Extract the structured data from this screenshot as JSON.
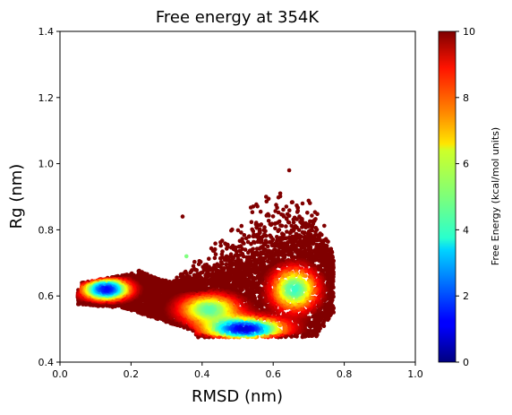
{
  "chart_data": {
    "type": "scatter",
    "title": "Free energy at 354K",
    "xlabel": "RMSD (nm)",
    "ylabel": "Rg (nm)",
    "xlim": [
      0.0,
      1.0
    ],
    "ylim": [
      0.4,
      1.4
    ],
    "xticks": [
      "0.0",
      "0.2",
      "0.4",
      "0.6",
      "0.8",
      "1.0"
    ],
    "yticks": [
      "0.4",
      "0.6",
      "0.8",
      "1.0",
      "1.2",
      "1.4"
    ],
    "colorbar": {
      "label": "Free Energy (kcal/mol units)",
      "range": [
        0,
        10
      ],
      "ticks": [
        "0",
        "2",
        "4",
        "6",
        "8",
        "10"
      ],
      "colormap": "jet"
    },
    "point_size_note": "dense scatter of ~thousands of conformations colored by free energy",
    "regions": [
      {
        "name": "left basin",
        "x": 0.13,
        "y": 0.62,
        "rx": 0.07,
        "ry": 0.035,
        "energy_min": 1.0
      },
      {
        "name": "lower basin",
        "x": 0.52,
        "y": 0.5,
        "rx": 0.1,
        "ry": 0.03,
        "energy_min": 0.8
      },
      {
        "name": "right shoulder",
        "x": 0.67,
        "y": 0.65,
        "rx": 0.05,
        "ry": 0.07,
        "energy_min": 3.0
      },
      {
        "name": "high energy plume",
        "x": 0.55,
        "y": 0.72,
        "rx": 0.12,
        "ry": 0.1,
        "energy_min": 9.5
      }
    ],
    "outliers": [
      {
        "x": 0.645,
        "y": 0.98,
        "energy": 10
      },
      {
        "x": 0.345,
        "y": 0.84,
        "energy": 10
      },
      {
        "x": 0.62,
        "y": 0.91,
        "energy": 10
      },
      {
        "x": 0.58,
        "y": 0.9,
        "energy": 10
      },
      {
        "x": 0.356,
        "y": 0.72,
        "energy": 5
      }
    ]
  }
}
